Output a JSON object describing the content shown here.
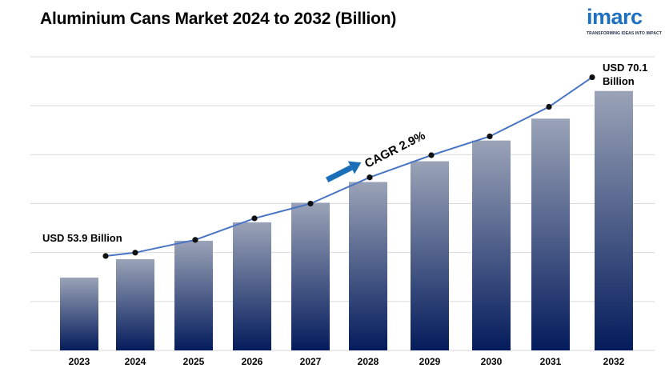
{
  "header": {
    "title": "Aluminium Cans Market 2024 to 2032 (Billion)",
    "logo_text": "imarc",
    "logo_tagline": "TRANSFORMING IDEAS INTO IMPACT"
  },
  "colors": {
    "bar_top": "#9aa3b7",
    "bar_bottom": "#041c5c",
    "line": "#4a74c4",
    "marker": "#111111",
    "arrow": "#1a6fb8",
    "grid": "#d9d9d9",
    "logo": "#1d6fc0"
  },
  "chart_data": {
    "type": "bar",
    "title": "Aluminium Cans Market 2024 to 2032 (Billion)",
    "categories": [
      "2023",
      "2024",
      "2025",
      "2026",
      "2027",
      "2028",
      "2029",
      "2030",
      "2031",
      "2032"
    ],
    "series": [
      {
        "values": [
          53.9,
          55.5,
          57.1,
          58.7,
          60.4,
          62.2,
          64.0,
          65.8,
          67.7,
          70.1
        ]
      }
    ],
    "trend_line": [
      53.9,
      54.4,
      56.3,
      59.5,
      61.7,
      65.6,
      68.9,
      71.7,
      76.1,
      80.5
    ],
    "annotations": {
      "start": "USD 53.9 Billion",
      "end_line1": "USD 70.1",
      "end_line2": "Billion",
      "cagr": "CAGR 2.9%"
    },
    "grid": true,
    "gridlines": 7,
    "legend": "none"
  }
}
